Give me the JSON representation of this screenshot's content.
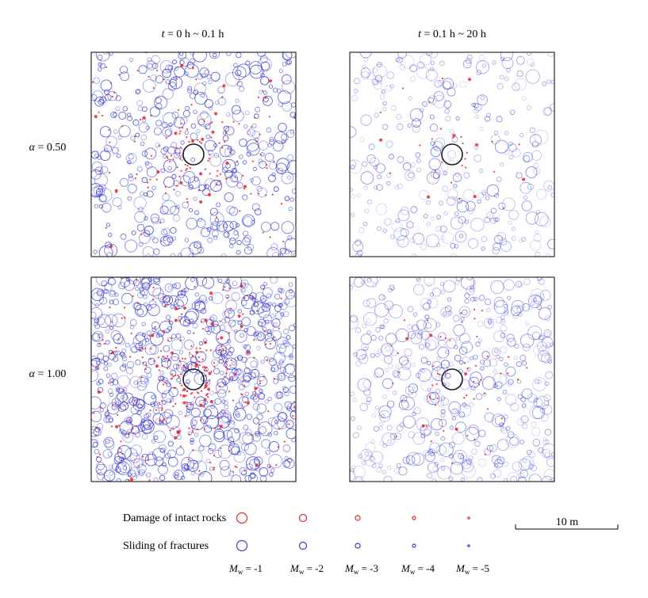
{
  "columns": [
    {
      "var": "t",
      "rest": " = 0 h ~ 0.1 h"
    },
    {
      "var": "t",
      "rest": " = 0.1 h ~ 20 h"
    }
  ],
  "rows": [
    {
      "var": "α",
      "rest": " = 0.50"
    },
    {
      "var": "α",
      "rest": " = 1.00"
    }
  ],
  "panels": [
    {
      "id": "a050-early",
      "fracture_events": 430,
      "damage_events": 170,
      "seed": 11
    },
    {
      "id": "a050-late",
      "fracture_events": 300,
      "damage_events": 30,
      "seed": 23
    },
    {
      "id": "a100-early",
      "fracture_events": 720,
      "damage_events": 330,
      "seed": 37
    },
    {
      "id": "a100-late",
      "fracture_events": 480,
      "damage_events": 55,
      "seed": 49
    }
  ],
  "legend": {
    "damage_label": "Damage of intact rocks",
    "sliding_label": "Sliding of fractures",
    "magnitude_prefix": "M",
    "magnitude_sub": "w",
    "magnitudes": [
      "-1",
      "-2",
      "-3",
      "-4",
      "-5"
    ]
  },
  "scale_bar": {
    "label": "10 m"
  },
  "colors": {
    "damage": "#e8262a",
    "sliding": "#3a3ad0",
    "tunnel": "#1a1a2a",
    "frame": "#000000"
  }
}
